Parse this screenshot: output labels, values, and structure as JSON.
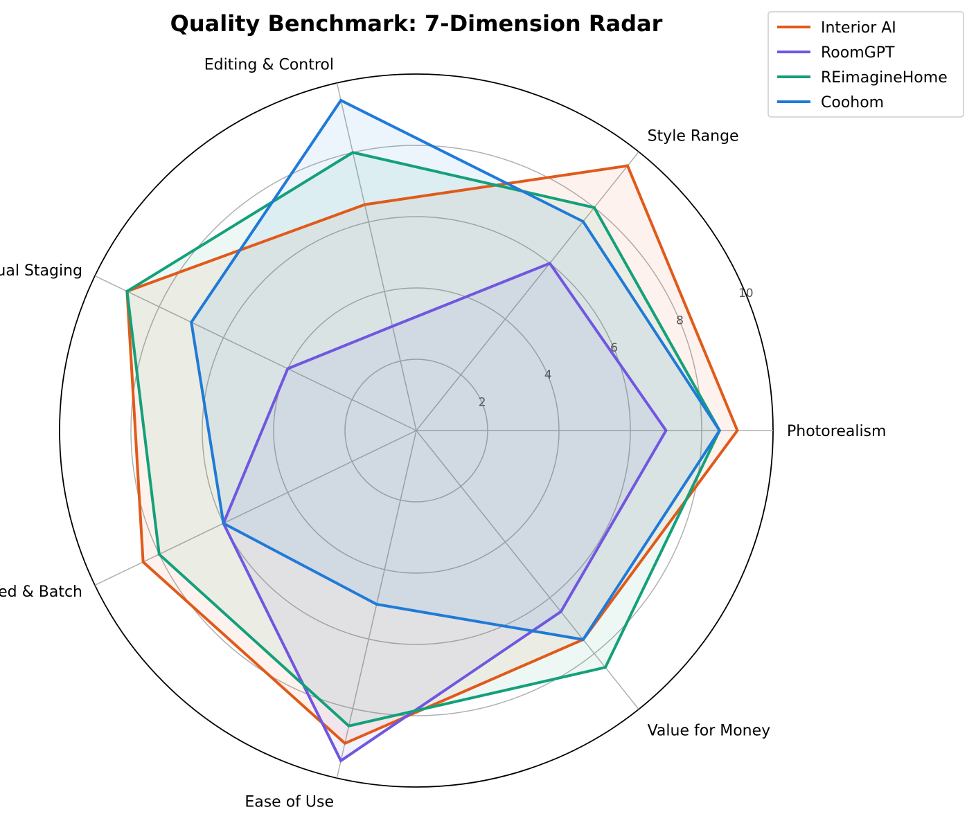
{
  "chart_data": {
    "type": "radar",
    "title": "Quality Benchmark: 7-Dimension Radar",
    "axes": [
      "Photorealism",
      "Style Range",
      "Editing & Control",
      "Virtual Staging",
      "Speed & Batch",
      "Ease of Use",
      "Value for Money"
    ],
    "rlim": [
      0,
      10
    ],
    "rticks": [
      2,
      4,
      6,
      8,
      10
    ],
    "rtick_labels": [
      "2",
      "4",
      "6",
      "8",
      "10"
    ],
    "grid": true,
    "legend_position": "top-right",
    "series": [
      {
        "name": "Interior AI",
        "color": "#e05a1a",
        "values": [
          9.0,
          9.5,
          6.5,
          9.0,
          8.5,
          9.0,
          7.5
        ]
      },
      {
        "name": "RoomGPT",
        "color": "#7057e0",
        "values": [
          7.0,
          6.0,
          3.0,
          4.0,
          6.0,
          9.5,
          6.5
        ]
      },
      {
        "name": "REimagineHome",
        "color": "#14a07a",
        "values": [
          8.5,
          8.0,
          8.0,
          9.0,
          8.0,
          8.5,
          8.5
        ]
      },
      {
        "name": "Coohom",
        "color": "#1f7ad8",
        "values": [
          8.5,
          7.5,
          9.5,
          7.0,
          6.0,
          5.0,
          7.5
        ]
      }
    ]
  }
}
